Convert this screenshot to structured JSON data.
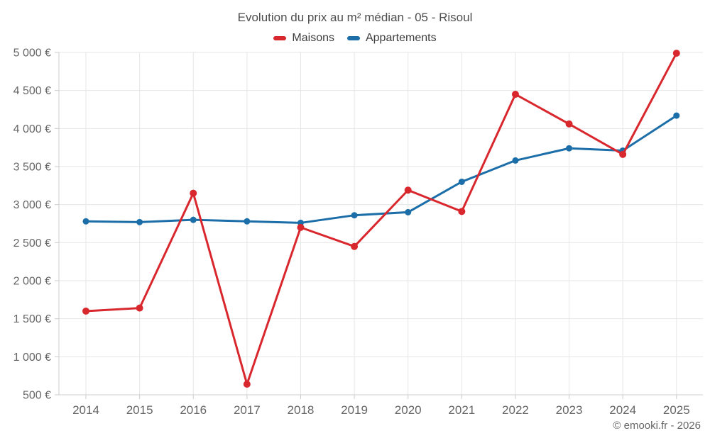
{
  "title": "Evolution du prix au m² médian - 05 - Risoul",
  "footer": {
    "credit": "© emooki.fr - 2026"
  },
  "colors": {
    "maisons": "#d9272e",
    "appartements": "#1c6ea8",
    "grid": "#e6e6e6",
    "axis": "#cccccc",
    "tick_text": "#666666",
    "title_text": "#4d4d4d"
  },
  "chart_data": {
    "type": "line",
    "title": "Evolution du prix au m² médian - 05 - Risoul",
    "x": [
      "2014",
      "2015",
      "2016",
      "2017",
      "2018",
      "2019",
      "2020",
      "2021",
      "2022",
      "2023",
      "2024",
      "2025"
    ],
    "series": [
      {
        "name": "Maisons",
        "color": "#d9272e",
        "marker_radius": 5,
        "values": [
          1600,
          1640,
          3150,
          640,
          2700,
          2450,
          3190,
          2910,
          4450,
          4060,
          3660,
          4990
        ]
      },
      {
        "name": "Appartements",
        "color": "#1c6ea8",
        "marker_radius": 4.5,
        "values": [
          2780,
          2770,
          2800,
          2780,
          2760,
          2860,
          2900,
          3300,
          3580,
          3740,
          3710,
          4170
        ]
      }
    ],
    "ylim": [
      500,
      5000
    ],
    "ytick_step": 500,
    "ytick_suffix": " €",
    "grid": true,
    "legend_position": "top",
    "credit": "© emooki.fr - 2026"
  }
}
